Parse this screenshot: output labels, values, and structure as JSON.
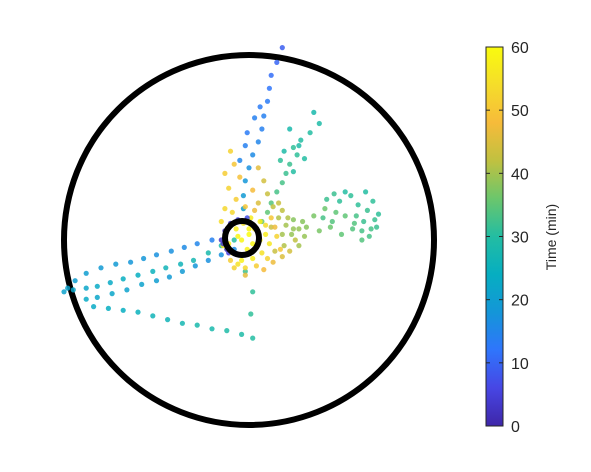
{
  "chart_data": {
    "type": "scatter",
    "title": "",
    "boundary": "circle",
    "point_color_scale": "parula",
    "colorbar": {
      "label": "Time (min)",
      "range": [
        0,
        60
      ],
      "ticks": [
        0,
        10,
        20,
        30,
        40,
        50,
        60
      ],
      "tick_labels": [
        "0",
        "10",
        "20",
        "30",
        "40",
        "50",
        "60"
      ],
      "colors": [
        "#3e26a8",
        "#4746e4",
        "#2f75fc",
        "#1496d8",
        "#06aec1",
        "#23bda2",
        "#6bc66c",
        "#c0c140",
        "#f6bb3a",
        "#f5dd2a",
        "#f9fb0e"
      ]
    },
    "x_range": [
      -1,
      1
    ],
    "y_range": [
      -1,
      1
    ],
    "series": [
      {
        "points": [
          [
            0.18,
            1.04,
            9
          ],
          [
            0.15,
            0.96,
            10
          ],
          [
            0.12,
            0.89,
            11
          ],
          [
            0.11,
            0.82,
            12
          ],
          [
            0.1,
            0.75,
            13
          ],
          [
            0.08,
            0.67,
            14
          ],
          [
            0.07,
            0.6,
            14
          ],
          [
            0.05,
            0.53,
            15
          ],
          [
            0.02,
            0.46,
            16
          ],
          [
            0.0,
            0.39,
            17
          ],
          [
            -0.02,
            0.32,
            18
          ],
          [
            -0.03,
            0.24,
            19
          ],
          [
            -0.03,
            0.17,
            20
          ],
          [
            -0.01,
            0.1,
            22
          ],
          [
            -0.02,
            0.51,
            14
          ],
          [
            -0.05,
            0.43,
            15
          ],
          [
            -0.01,
            0.58,
            13
          ],
          [
            0.03,
            0.66,
            14
          ],
          [
            0.06,
            0.72,
            13
          ]
        ]
      },
      {
        "points": [
          [
            -0.2,
            0.0,
            14
          ],
          [
            -0.28,
            -0.02,
            15
          ],
          [
            -0.35,
            -0.04,
            16
          ],
          [
            -0.42,
            -0.06,
            17
          ],
          [
            -0.5,
            -0.08,
            17
          ],
          [
            -0.57,
            -0.1,
            18
          ],
          [
            -0.64,
            -0.12,
            18
          ],
          [
            -0.72,
            -0.13,
            19
          ],
          [
            -0.8,
            -0.15,
            19
          ],
          [
            -0.88,
            -0.18,
            20
          ],
          [
            -0.94,
            -0.22,
            20
          ],
          [
            -0.98,
            -0.26,
            21
          ],
          [
            -1.0,
            -0.28,
            21
          ],
          [
            -0.95,
            -0.27,
            22
          ],
          [
            -0.88,
            -0.26,
            22
          ],
          [
            -0.82,
            -0.25,
            23
          ],
          [
            -0.75,
            -0.23,
            23
          ],
          [
            -0.68,
            -0.21,
            24
          ],
          [
            -0.6,
            -0.19,
            24
          ],
          [
            -0.52,
            -0.17,
            25
          ],
          [
            -0.45,
            -0.15,
            26
          ],
          [
            -0.37,
            -0.13,
            26
          ],
          [
            -0.3,
            -0.11,
            27
          ],
          [
            -0.22,
            -0.07,
            28
          ],
          [
            -0.15,
            -0.03,
            29
          ],
          [
            -0.08,
            0.0,
            30
          ]
        ]
      },
      {
        "points": [
          [
            -0.08,
            -0.05,
            16
          ],
          [
            -0.15,
            -0.08,
            17
          ],
          [
            -0.22,
            -0.11,
            17
          ],
          [
            -0.29,
            -0.14,
            18
          ],
          [
            -0.36,
            -0.17,
            19
          ],
          [
            -0.43,
            -0.2,
            19
          ],
          [
            -0.5,
            -0.22,
            20
          ],
          [
            -0.58,
            -0.24,
            21
          ],
          [
            -0.66,
            -0.27,
            21
          ],
          [
            -0.74,
            -0.29,
            22
          ],
          [
            -0.82,
            -0.31,
            22
          ],
          [
            -0.88,
            -0.32,
            23
          ],
          [
            -0.84,
            -0.36,
            23
          ],
          [
            -0.76,
            -0.37,
            24
          ],
          [
            -0.68,
            -0.38,
            24
          ],
          [
            -0.6,
            -0.39,
            25
          ],
          [
            -0.52,
            -0.41,
            26
          ],
          [
            -0.44,
            -0.43,
            26
          ],
          [
            -0.36,
            -0.45,
            27
          ],
          [
            -0.28,
            -0.46,
            28
          ],
          [
            -0.2,
            -0.48,
            28
          ],
          [
            -0.12,
            -0.49,
            29
          ],
          [
            -0.04,
            -0.51,
            29
          ],
          [
            0.02,
            -0.53,
            30
          ],
          [
            0.01,
            -0.4,
            31
          ],
          [
            0.02,
            -0.28,
            31
          ],
          [
            -0.02,
            -0.17,
            32
          ]
        ]
      },
      {
        "points": [
          [
            0.35,
            0.69,
            28
          ],
          [
            0.38,
            0.63,
            29
          ],
          [
            0.33,
            0.58,
            30
          ],
          [
            0.28,
            0.54,
            30
          ],
          [
            0.24,
            0.5,
            31
          ],
          [
            0.26,
            0.46,
            31
          ],
          [
            0.22,
            0.41,
            32
          ],
          [
            0.2,
            0.36,
            32
          ],
          [
            0.18,
            0.31,
            33
          ],
          [
            0.15,
            0.26,
            33
          ],
          [
            0.12,
            0.2,
            34
          ],
          [
            0.1,
            0.15,
            35
          ],
          [
            0.07,
            0.1,
            36
          ],
          [
            0.22,
            0.6,
            28
          ],
          [
            0.27,
            0.51,
            29
          ],
          [
            0.19,
            0.48,
            29
          ],
          [
            0.24,
            0.37,
            30
          ],
          [
            0.3,
            0.44,
            30
          ],
          [
            0.17,
            0.43,
            31
          ]
        ]
      },
      {
        "points": [
          [
            0.63,
            0.26,
            30
          ],
          [
            0.67,
            0.21,
            31
          ],
          [
            0.7,
            0.14,
            31
          ],
          [
            0.69,
            0.07,
            32
          ],
          [
            0.65,
            0.02,
            33
          ],
          [
            0.61,
            0.05,
            33
          ],
          [
            0.57,
            0.09,
            34
          ],
          [
            0.52,
            0.13,
            35
          ],
          [
            0.47,
            0.15,
            35
          ],
          [
            0.41,
            0.17,
            36
          ],
          [
            0.35,
            0.13,
            37
          ],
          [
            0.29,
            0.1,
            38
          ],
          [
            0.24,
            0.06,
            39
          ],
          [
            0.18,
            0.03,
            40
          ],
          [
            0.52,
            0.26,
            30
          ],
          [
            0.55,
            0.24,
            31
          ],
          [
            0.59,
            0.19,
            31
          ],
          [
            0.64,
            0.16,
            32
          ],
          [
            0.68,
            0.11,
            32
          ],
          [
            0.62,
            0.1,
            32
          ],
          [
            0.58,
            0.13,
            33
          ],
          [
            0.66,
            0.06,
            33
          ],
          [
            0.61,
            0.0,
            34
          ],
          [
            0.56,
            0.06,
            34
          ],
          [
            0.5,
            0.03,
            35
          ],
          [
            0.44,
            0.07,
            36
          ],
          [
            0.38,
            0.05,
            37
          ],
          [
            0.31,
            0.07,
            38
          ],
          [
            0.49,
            0.21,
            31
          ],
          [
            0.46,
            0.25,
            32
          ],
          [
            0.42,
            0.22,
            32
          ],
          [
            0.4,
            0.12,
            33
          ],
          [
            0.45,
            0.1,
            34
          ]
        ]
      },
      {
        "points": [
          [
            -0.1,
            0.48,
            52
          ],
          [
            -0.08,
            0.41,
            50
          ],
          [
            -0.13,
            0.36,
            51
          ],
          [
            -0.05,
            0.34,
            49
          ],
          [
            -0.11,
            0.28,
            52
          ],
          [
            0.02,
            0.27,
            48
          ],
          [
            -0.07,
            0.22,
            51
          ],
          [
            -0.02,
            0.18,
            50
          ],
          [
            0.03,
            0.16,
            47
          ],
          [
            -0.09,
            0.15,
            53
          ],
          [
            0.05,
            0.39,
            46
          ],
          [
            0.08,
            0.32,
            44
          ],
          [
            0.1,
            0.25,
            43
          ],
          [
            0.13,
            0.18,
            42
          ],
          [
            0.16,
            0.12,
            41
          ],
          [
            0.12,
            0.07,
            43
          ],
          [
            0.2,
            0.08,
            40
          ],
          [
            0.23,
            0.03,
            39
          ],
          [
            0.19,
            -0.03,
            41
          ],
          [
            0.14,
            -0.06,
            43
          ],
          [
            -0.15,
            0.1,
            54
          ],
          [
            -0.12,
            0.05,
            56
          ],
          [
            -0.03,
            0.09,
            55
          ],
          [
            0.01,
            0.12,
            57
          ],
          [
            0.06,
            0.1,
            58
          ],
          [
            0.09,
            0.03,
            57
          ],
          [
            0.11,
            -0.02,
            56
          ],
          [
            0.07,
            -0.07,
            55
          ],
          [
            0.02,
            -0.1,
            57
          ],
          [
            -0.04,
            -0.11,
            58
          ],
          [
            -0.09,
            -0.07,
            59
          ],
          [
            -0.11,
            -0.02,
            57
          ],
          [
            -0.06,
            0.02,
            59
          ],
          [
            0.0,
            0.03,
            60
          ],
          [
            0.04,
            -0.03,
            59
          ],
          [
            -0.01,
            -0.05,
            58
          ],
          [
            0.03,
            0.06,
            56
          ],
          [
            -0.07,
            0.06,
            57
          ],
          [
            0.09,
            0.08,
            54
          ],
          [
            0.15,
            0.02,
            52
          ],
          [
            0.17,
            -0.05,
            50
          ],
          [
            0.1,
            -0.1,
            52
          ],
          [
            0.04,
            -0.14,
            51
          ],
          [
            -0.02,
            -0.15,
            53
          ],
          [
            -0.06,
            -0.13,
            55
          ],
          [
            -0.08,
            -0.15,
            52
          ],
          [
            0.13,
            -0.12,
            47
          ],
          [
            0.18,
            -0.09,
            45
          ],
          [
            0.22,
            -0.06,
            44
          ],
          [
            0.25,
            0.0,
            42
          ],
          [
            0.21,
            0.12,
            41
          ],
          [
            0.16,
            0.2,
            43
          ],
          [
            0.27,
            0.06,
            39
          ],
          [
            0.24,
            0.11,
            38
          ],
          [
            0.05,
            0.2,
            45
          ],
          [
            0.0,
            0.06,
            58
          ],
          [
            -0.04,
            0.0,
            59
          ],
          [
            0.06,
            0.0,
            58
          ],
          [
            0.02,
            -0.02,
            59
          ],
          [
            -0.02,
            0.1,
            54
          ],
          [
            0.12,
            0.12,
            50
          ],
          [
            -0.14,
            -0.03,
            56
          ],
          [
            -0.13,
            0.17,
            53
          ],
          [
            0.18,
            0.16,
            42
          ],
          [
            0.27,
            -0.03,
            40
          ],
          [
            0.3,
            0.02,
            39
          ],
          [
            0.08,
            -0.16,
            48
          ],
          [
            -0.02,
            -0.19,
            46
          ],
          [
            -0.1,
            -0.11,
            51
          ],
          [
            0.14,
            0.07,
            47
          ]
        ]
      },
      {
        "points": [
          [
            -0.13,
            0.05,
            2
          ],
          [
            -0.1,
            0.09,
            3
          ],
          [
            -0.14,
            -0.02,
            4
          ],
          [
            -0.11,
            -0.07,
            5
          ],
          [
            -0.06,
            0.11,
            6
          ],
          [
            -0.01,
            0.12,
            7
          ],
          [
            -0.15,
            0.0,
            3
          ],
          [
            -0.12,
            -0.05,
            2
          ]
        ]
      }
    ]
  }
}
